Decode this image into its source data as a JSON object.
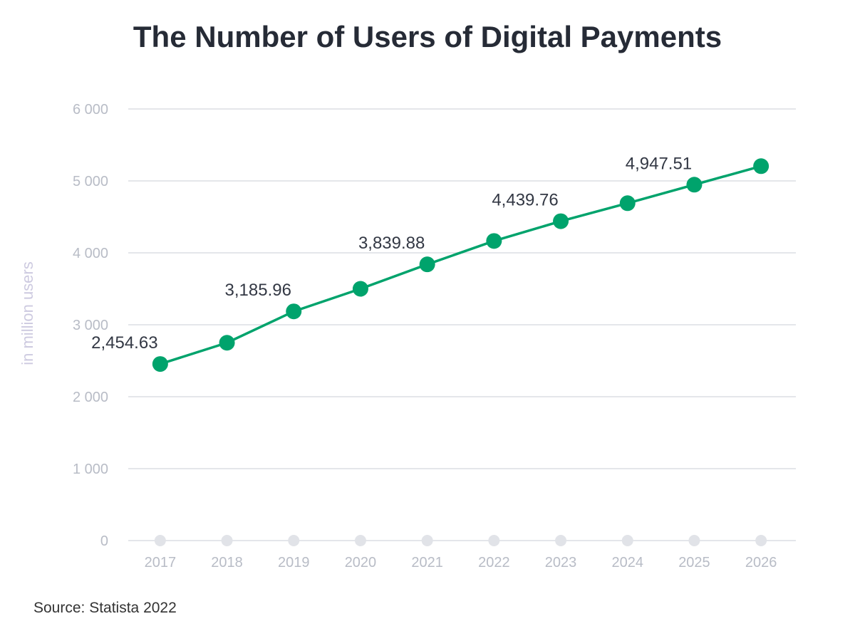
{
  "chart_data": {
    "type": "line",
    "title": "The Number of Users of Digital Payments",
    "ylabel": "in million users",
    "xlabel": "",
    "categories": [
      "2017",
      "2018",
      "2019",
      "2020",
      "2021",
      "2022",
      "2023",
      "2024",
      "2025",
      "2026"
    ],
    "series": [
      {
        "values": [
          2454.63,
          2750,
          3185.96,
          3500,
          3839.88,
          4165,
          4439.76,
          4690,
          4947.51,
          5205
        ]
      }
    ],
    "data_labels": [
      "2,454.63",
      null,
      "3,185.96",
      null,
      "3,839.88",
      null,
      "4,439.76",
      null,
      "4,947.51",
      null
    ],
    "yticks": [
      0,
      1000,
      2000,
      3000,
      4000,
      5000,
      6000
    ],
    "ytick_labels": [
      "0",
      "1 000",
      "2 000",
      "3 000",
      "4 000",
      "5 000",
      "6 000"
    ],
    "ylim": [
      0,
      6000
    ],
    "grid": true,
    "legend": "none",
    "colors": {
      "line": "#00a36c",
      "grid": "#e4e6ea",
      "baseline_dot": "#e1e3e8"
    },
    "source": "Source: Statista 2022"
  }
}
